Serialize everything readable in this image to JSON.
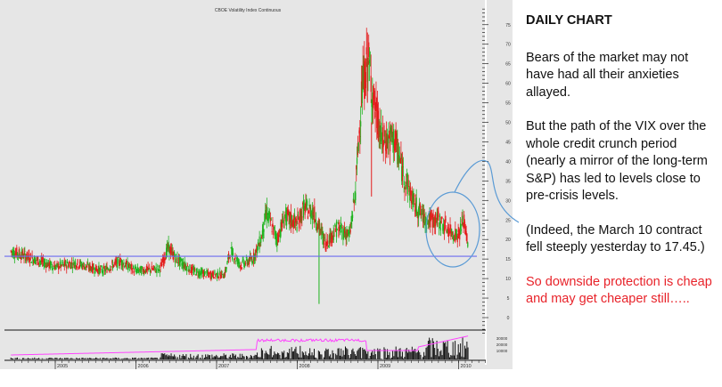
{
  "chart_data": {
    "type": "candlestick",
    "title": "CBOE Volatility Index Continuous",
    "ylim": [
      0,
      75
    ],
    "y_ticks": [
      "0",
      "5",
      "10",
      "15",
      "20",
      "25",
      "30",
      "35",
      "40",
      "45",
      "50",
      "55",
      "60",
      "65",
      "70",
      "75"
    ],
    "x_ticks": [
      "2005",
      "2006",
      "2007",
      "2008",
      "2009",
      "2010"
    ],
    "volume_ticks": [
      "30000",
      "20000",
      "10000"
    ],
    "grid": false,
    "price_path": [
      {
        "t": 2004.45,
        "v": 17
      },
      {
        "t": 2004.6,
        "v": 16
      },
      {
        "t": 2004.8,
        "v": 14.5
      },
      {
        "t": 2005.0,
        "v": 13
      },
      {
        "t": 2005.25,
        "v": 14
      },
      {
        "t": 2005.4,
        "v": 13
      },
      {
        "t": 2005.6,
        "v": 12
      },
      {
        "t": 2005.8,
        "v": 14.5
      },
      {
        "t": 2006.0,
        "v": 12
      },
      {
        "t": 2006.3,
        "v": 12.5
      },
      {
        "t": 2006.4,
        "v": 18
      },
      {
        "t": 2006.5,
        "v": 15
      },
      {
        "t": 2006.7,
        "v": 12
      },
      {
        "t": 2006.9,
        "v": 11
      },
      {
        "t": 2007.1,
        "v": 11
      },
      {
        "t": 2007.17,
        "v": 17
      },
      {
        "t": 2007.3,
        "v": 13.5
      },
      {
        "t": 2007.45,
        "v": 15
      },
      {
        "t": 2007.55,
        "v": 20
      },
      {
        "t": 2007.62,
        "v": 27
      },
      {
        "t": 2007.75,
        "v": 20
      },
      {
        "t": 2007.85,
        "v": 26
      },
      {
        "t": 2008.0,
        "v": 24
      },
      {
        "t": 2008.08,
        "v": 28
      },
      {
        "t": 2008.2,
        "v": 27
      },
      {
        "t": 2008.35,
        "v": 19
      },
      {
        "t": 2008.5,
        "v": 23
      },
      {
        "t": 2008.65,
        "v": 21
      },
      {
        "t": 2008.72,
        "v": 32
      },
      {
        "t": 2008.8,
        "v": 58
      },
      {
        "t": 2008.88,
        "v": 66
      },
      {
        "t": 2008.95,
        "v": 55
      },
      {
        "t": 2009.05,
        "v": 45
      },
      {
        "t": 2009.2,
        "v": 46
      },
      {
        "t": 2009.3,
        "v": 38
      },
      {
        "t": 2009.45,
        "v": 29
      },
      {
        "t": 2009.6,
        "v": 25
      },
      {
        "t": 2009.75,
        "v": 25
      },
      {
        "t": 2009.9,
        "v": 22
      },
      {
        "t": 2010.0,
        "v": 21
      },
      {
        "t": 2010.06,
        "v": 25
      },
      {
        "t": 2010.12,
        "v": 19
      }
    ],
    "horizontal_line_value": 15.7,
    "colors": {
      "up": "#1db31d",
      "down": "#e41b1b",
      "line": "#6b6bf0",
      "open_interest": "#ff44ff",
      "volume": "#111111",
      "annotation": "#5b9bd5",
      "background": "#e6e6e6"
    }
  },
  "text_panel": {
    "heading": "DAILY CHART",
    "p1": "Bears of the market may not have had all their anxieties allayed.",
    "p2": "But the path of the VIX over the whole credit crunch period (nearly a mirror of the long-term S&P) has led to levels close to pre-crisis levels.",
    "p3": "(Indeed, the March 10 contract fell steeply yesterday to 17.45.)",
    "p4": "So downside protection is cheap and may get cheaper still….."
  }
}
